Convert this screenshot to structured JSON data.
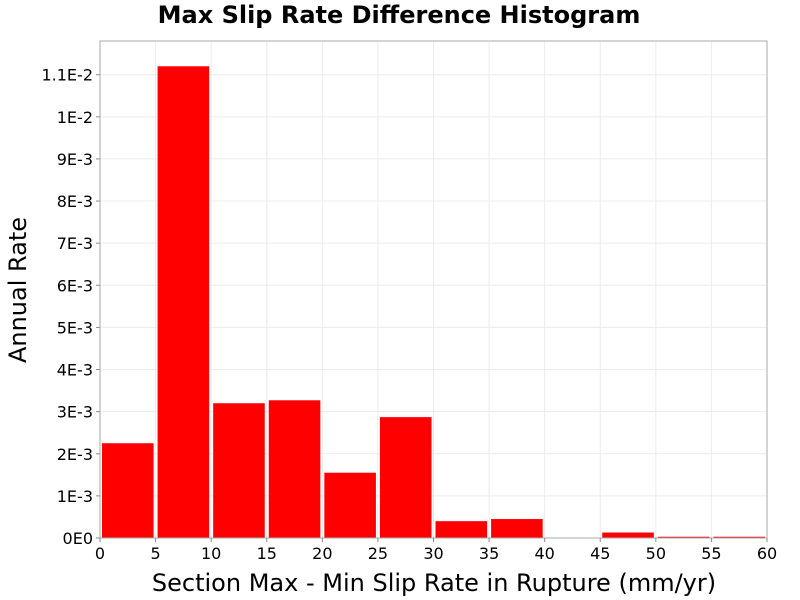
{
  "chart_data": {
    "type": "bar",
    "title": "Max Slip Rate Difference Histogram",
    "xlabel": "Section Max - Min Slip Rate in Rupture (mm/yr)",
    "ylabel": "Annual Rate",
    "xlim": [
      0,
      60
    ],
    "ylim": [
      0,
      0.0118
    ],
    "bin_width": 5,
    "x": [
      2.5,
      7.5,
      12.5,
      17.5,
      22.5,
      27.5,
      32.5,
      37.5,
      42.5,
      47.5,
      52.5,
      57.5
    ],
    "values": [
      0.00225,
      0.0112,
      0.0032,
      0.00327,
      0.00155,
      0.00287,
      0.0004,
      0.00045,
      0,
      0.00013,
      3e-05,
      3e-05
    ],
    "bar_color": "#ff0000",
    "x_ticks": [
      0,
      5,
      10,
      15,
      20,
      25,
      30,
      35,
      40,
      45,
      50,
      55,
      60
    ],
    "x_tick_labels": [
      "0",
      "5",
      "10",
      "15",
      "20",
      "25",
      "30",
      "35",
      "40",
      "45",
      "50",
      "55",
      "60"
    ],
    "y_ticks": [
      0,
      0.001,
      0.002,
      0.003,
      0.004,
      0.005,
      0.006,
      0.007,
      0.008,
      0.009,
      0.01,
      0.011
    ],
    "y_tick_labels": [
      "0E0",
      "1E-3",
      "2E-3",
      "3E-3",
      "4E-3",
      "5E-3",
      "6E-3",
      "7E-3",
      "8E-3",
      "9E-3",
      "1E-2",
      "1.1E-2"
    ],
    "grid": true,
    "legend": "none"
  }
}
